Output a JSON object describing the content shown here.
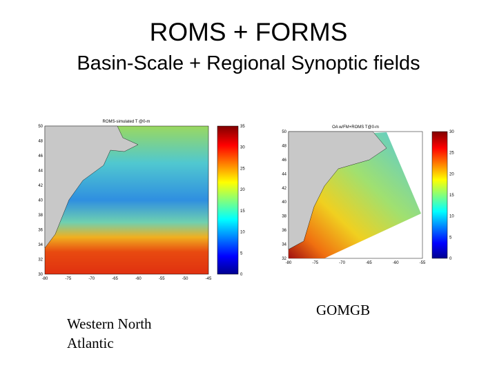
{
  "header": {
    "title": "ROMS + FORMS",
    "subtitle": "Basin-Scale + Regional Synoptic fields"
  },
  "figures": [
    {
      "title": "ROMS-simulated T @0-m",
      "xticks": [
        "-80",
        "-75",
        "-70",
        "-65",
        "-60",
        "-55",
        "-50",
        "-45"
      ],
      "yticks": [
        "30",
        "32",
        "34",
        "36",
        "38",
        "40",
        "42",
        "44",
        "46",
        "48",
        "50"
      ],
      "colorbar_ticks": [
        "0",
        "5",
        "10",
        "15",
        "20",
        "25",
        "30",
        "35"
      ],
      "caption": "Western North Atlantic"
    },
    {
      "title": "OA w/FM+ROMS  T@0-m",
      "xticks": [
        "-80",
        "-75",
        "-70",
        "-65",
        "-60",
        "-55"
      ],
      "yticks": [
        "32",
        "34",
        "36",
        "38",
        "40",
        "42",
        "44",
        "46",
        "48",
        "50"
      ],
      "colorbar_ticks": [
        "0",
        "5",
        "10",
        "15",
        "20",
        "25",
        "30"
      ],
      "caption": "GOMGB"
    }
  ]
}
